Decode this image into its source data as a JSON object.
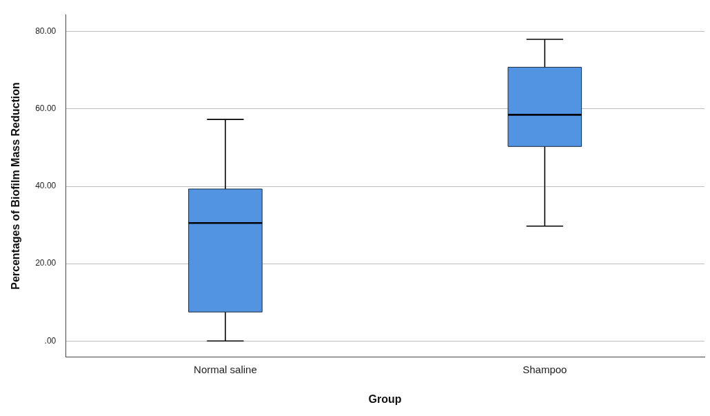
{
  "chart_data": {
    "type": "box",
    "xlabel": "Group",
    "ylabel": "Percentages of Biofilm Mass Reduction",
    "categories": [
      "Normal saline",
      "Shampoo"
    ],
    "color": "#5294e2",
    "boxes": [
      {
        "low": 0,
        "q1": 7.5,
        "median": 30.5,
        "q3": 39.3,
        "high": 57.3
      },
      {
        "low": 29.7,
        "q1": 50.3,
        "median": 58.5,
        "q3": 70.8,
        "high": 78.0
      }
    ],
    "ylim": [
      -4.2,
      84.4
    ],
    "yticks": [
      {
        "value": 0,
        "label": ".00"
      },
      {
        "value": 20,
        "label": "20.00"
      },
      {
        "value": 40,
        "label": "40.00"
      },
      {
        "value": 60,
        "label": "60.00"
      },
      {
        "value": 80,
        "label": "80.00"
      }
    ],
    "grid": "y"
  }
}
